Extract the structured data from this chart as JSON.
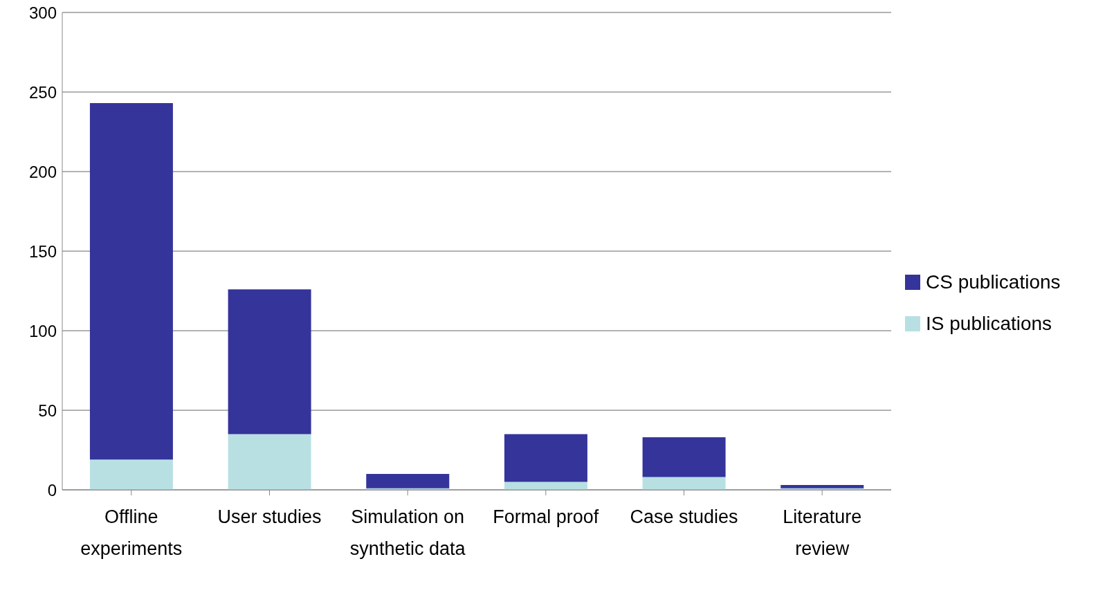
{
  "chart_data": {
    "type": "bar",
    "stacked": true,
    "categories": [
      "Offline experiments",
      "User studies",
      "Simulation on synthetic data",
      "Formal proof",
      "Case studies",
      "Literature review"
    ],
    "series": [
      {
        "name": "IS publications",
        "color": "#b8e0e3",
        "values": [
          19,
          35,
          1,
          5,
          8,
          1
        ]
      },
      {
        "name": "CS publications",
        "color": "#35349a",
        "values": [
          224,
          91,
          9,
          30,
          25,
          2
        ]
      }
    ],
    "ylim": [
      0,
      300
    ],
    "yticks": [
      0,
      50,
      100,
      150,
      200,
      250,
      300
    ],
    "grid": "y",
    "legend": "right"
  }
}
